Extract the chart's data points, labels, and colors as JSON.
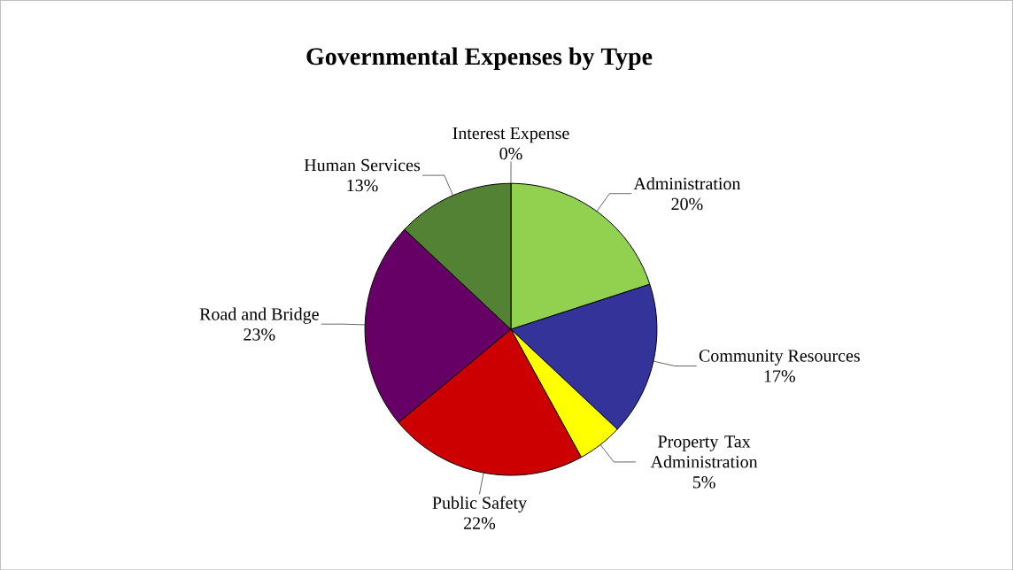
{
  "chart_data": {
    "type": "pie",
    "title": "Governmental Expenses by Type",
    "categories": [
      "Interest Expense",
      "Administration",
      "Community Resources",
      "Property Tax Administration",
      "Public Safety",
      "Road and Bridge",
      "Human Services"
    ],
    "values": [
      0,
      20,
      17,
      5,
      22,
      23,
      13
    ],
    "value_labels": [
      "0%",
      "20%",
      "17%",
      "5%",
      "22%",
      "23%",
      "13%"
    ],
    "colors": [
      "#8080c0",
      "#92d050",
      "#333399",
      "#ffff00",
      "#cc0000",
      "#660066",
      "#548235"
    ]
  }
}
